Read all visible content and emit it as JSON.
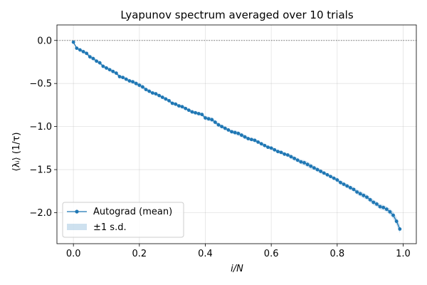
{
  "chart_data": {
    "type": "line",
    "title": "Lyapunov spectrum averaged over 10 trials",
    "xlabel": "i/N",
    "ylabel": "⟨λᵢ⟩  (1/τ)",
    "xlim": [
      -0.05,
      1.04
    ],
    "ylim": [
      -2.36,
      0.18
    ],
    "xticks": [
      0.0,
      0.2,
      0.4,
      0.6,
      0.8,
      1.0
    ],
    "xtick_labels": [
      "0.0",
      "0.2",
      "0.4",
      "0.6",
      "0.8",
      "1.0"
    ],
    "yticks": [
      0.0,
      -0.5,
      -1.0,
      -1.5,
      -2.0
    ],
    "ytick_labels": [
      "0.0",
      "−0.5",
      "−1.0",
      "−1.5",
      "−2.0"
    ],
    "grid": true,
    "reference_line_y": 0.0,
    "legend_position": "lower-left",
    "legend": [
      "Autograd (mean)",
      "±1 s.d."
    ],
    "series": [
      {
        "name": "Autograd (mean)",
        "color": "#1f77b4",
        "x": [
          0.0,
          0.01,
          0.02,
          0.03,
          0.04,
          0.05,
          0.06,
          0.07,
          0.08,
          0.09,
          0.1,
          0.11,
          0.12,
          0.13,
          0.14,
          0.15,
          0.16,
          0.17,
          0.18,
          0.19,
          0.2,
          0.21,
          0.22,
          0.23,
          0.24,
          0.25,
          0.26,
          0.27,
          0.28,
          0.29,
          0.3,
          0.31,
          0.32,
          0.33,
          0.34,
          0.35,
          0.36,
          0.37,
          0.38,
          0.39,
          0.4,
          0.41,
          0.42,
          0.43,
          0.44,
          0.45,
          0.46,
          0.47,
          0.48,
          0.49,
          0.5,
          0.51,
          0.52,
          0.53,
          0.54,
          0.55,
          0.56,
          0.57,
          0.58,
          0.59,
          0.6,
          0.61,
          0.62,
          0.63,
          0.64,
          0.65,
          0.66,
          0.67,
          0.68,
          0.69,
          0.7,
          0.71,
          0.72,
          0.73,
          0.74,
          0.75,
          0.76,
          0.77,
          0.78,
          0.79,
          0.8,
          0.81,
          0.82,
          0.83,
          0.84,
          0.85,
          0.86,
          0.87,
          0.88,
          0.89,
          0.9,
          0.91,
          0.92,
          0.93,
          0.94,
          0.95,
          0.96,
          0.97,
          0.98,
          0.99
        ],
        "y": [
          -0.02,
          -0.09,
          -0.11,
          -0.13,
          -0.15,
          -0.19,
          -0.21,
          -0.24,
          -0.26,
          -0.3,
          -0.32,
          -0.34,
          -0.36,
          -0.38,
          -0.42,
          -0.43,
          -0.45,
          -0.47,
          -0.48,
          -0.5,
          -0.52,
          -0.54,
          -0.57,
          -0.59,
          -0.61,
          -0.62,
          -0.64,
          -0.66,
          -0.68,
          -0.7,
          -0.73,
          -0.74,
          -0.76,
          -0.77,
          -0.79,
          -0.81,
          -0.83,
          -0.84,
          -0.85,
          -0.86,
          -0.9,
          -0.91,
          -0.92,
          -0.95,
          -0.98,
          -1.0,
          -1.02,
          -1.04,
          -1.06,
          -1.07,
          -1.08,
          -1.1,
          -1.12,
          -1.14,
          -1.15,
          -1.16,
          -1.18,
          -1.2,
          -1.22,
          -1.24,
          -1.25,
          -1.27,
          -1.29,
          -1.3,
          -1.32,
          -1.33,
          -1.35,
          -1.37,
          -1.39,
          -1.41,
          -1.42,
          -1.44,
          -1.46,
          -1.48,
          -1.5,
          -1.52,
          -1.54,
          -1.56,
          -1.58,
          -1.6,
          -1.62,
          -1.65,
          -1.67,
          -1.69,
          -1.71,
          -1.73,
          -1.76,
          -1.78,
          -1.8,
          -1.82,
          -1.85,
          -1.88,
          -1.9,
          -1.93,
          -1.94,
          -1.96,
          -1.99,
          -2.03,
          -2.1,
          -2.19
        ]
      }
    ],
    "band": {
      "name": "±1 s.d.",
      "color": "#1f77b4",
      "sd": [
        0.01,
        0.015,
        0.015,
        0.02,
        0.02,
        0.025,
        0.02,
        0.02,
        0.02,
        0.02,
        0.02,
        0.02,
        0.02,
        0.02,
        0.02,
        0.02,
        0.02,
        0.02,
        0.02,
        0.025,
        0.025,
        0.025,
        0.02,
        0.02,
        0.02,
        0.02,
        0.02,
        0.02,
        0.02,
        0.02,
        0.02,
        0.02,
        0.02,
        0.02,
        0.02,
        0.02,
        0.02,
        0.02,
        0.02,
        0.02,
        0.025,
        0.025,
        0.025,
        0.025,
        0.025,
        0.02,
        0.02,
        0.02,
        0.02,
        0.025,
        0.025,
        0.025,
        0.025,
        0.02,
        0.02,
        0.02,
        0.02,
        0.02,
        0.02,
        0.02,
        0.02,
        0.02,
        0.02,
        0.02,
        0.02,
        0.02,
        0.025,
        0.025,
        0.025,
        0.025,
        0.03,
        0.03,
        0.03,
        0.025,
        0.025,
        0.025,
        0.02,
        0.02,
        0.02,
        0.02,
        0.025,
        0.025,
        0.025,
        0.025,
        0.025,
        0.025,
        0.03,
        0.03,
        0.03,
        0.03,
        0.03,
        0.03,
        0.03,
        0.03,
        0.03,
        0.03,
        0.035,
        0.04,
        0.045,
        0.05
      ]
    }
  }
}
